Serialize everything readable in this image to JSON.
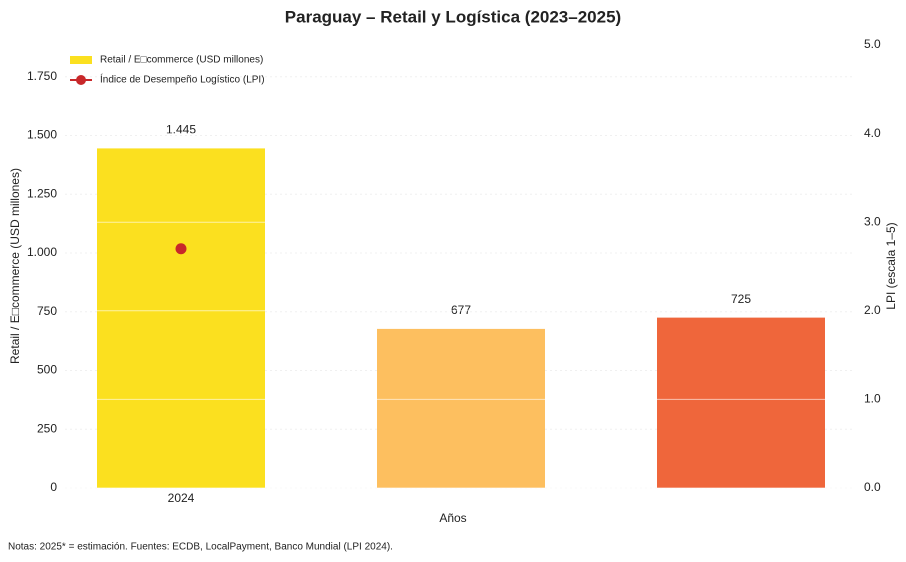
{
  "chart_data": {
    "type": "bar",
    "title": "Paraguay – Retail y Logística (2023–2025)",
    "x_label": "Años",
    "y_label": "Retail / E□commerce (USD millones)",
    "y2_label": "LPI (escala 1–5)",
    "note": "Notas: 2025* = estimación. Fuentes: ECDB, LocalPayment, Banco Mundial (LPI 2024).",
    "categories": [
      "2024",
      null,
      null
    ],
    "series": [
      {
        "name": "Retail / E□commerce (USD millones)",
        "type": "bar",
        "color": "#fbe01f",
        "colors": [
          "#fbe01f",
          "#fdbf5f",
          "#ef663b"
        ],
        "values": [
          1445,
          677,
          725
        ],
        "value_labels": [
          "1.445",
          "677",
          "725"
        ]
      },
      {
        "name": "Índice de Desempeño Logístico (LPI)",
        "type": "line",
        "axis": "y2",
        "color": "#c8282a",
        "values": [
          2.7,
          null,
          null
        ]
      }
    ],
    "ylim": [
      0,
      1885
    ],
    "yticks": [
      0,
      250,
      500,
      750,
      {
        "value": 1000,
        "label": "1.000"
      },
      {
        "value": 1250,
        "label": "1.250"
      },
      {
        "value": 1500,
        "label": "1.500"
      },
      {
        "value": 1750,
        "label": "1.750"
      }
    ],
    "y2lim": [
      0,
      5
    ],
    "y2ticks": [
      {
        "value": 0,
        "label": "0.0"
      },
      {
        "value": 1,
        "label": "1.0"
      },
      {
        "value": 2,
        "label": "2.0"
      },
      {
        "value": 3,
        "label": "3.0"
      },
      {
        "value": 4,
        "label": "4.0"
      },
      {
        "value": 5,
        "label": "5.0"
      }
    ],
    "grid": true,
    "legend": "upper left"
  }
}
